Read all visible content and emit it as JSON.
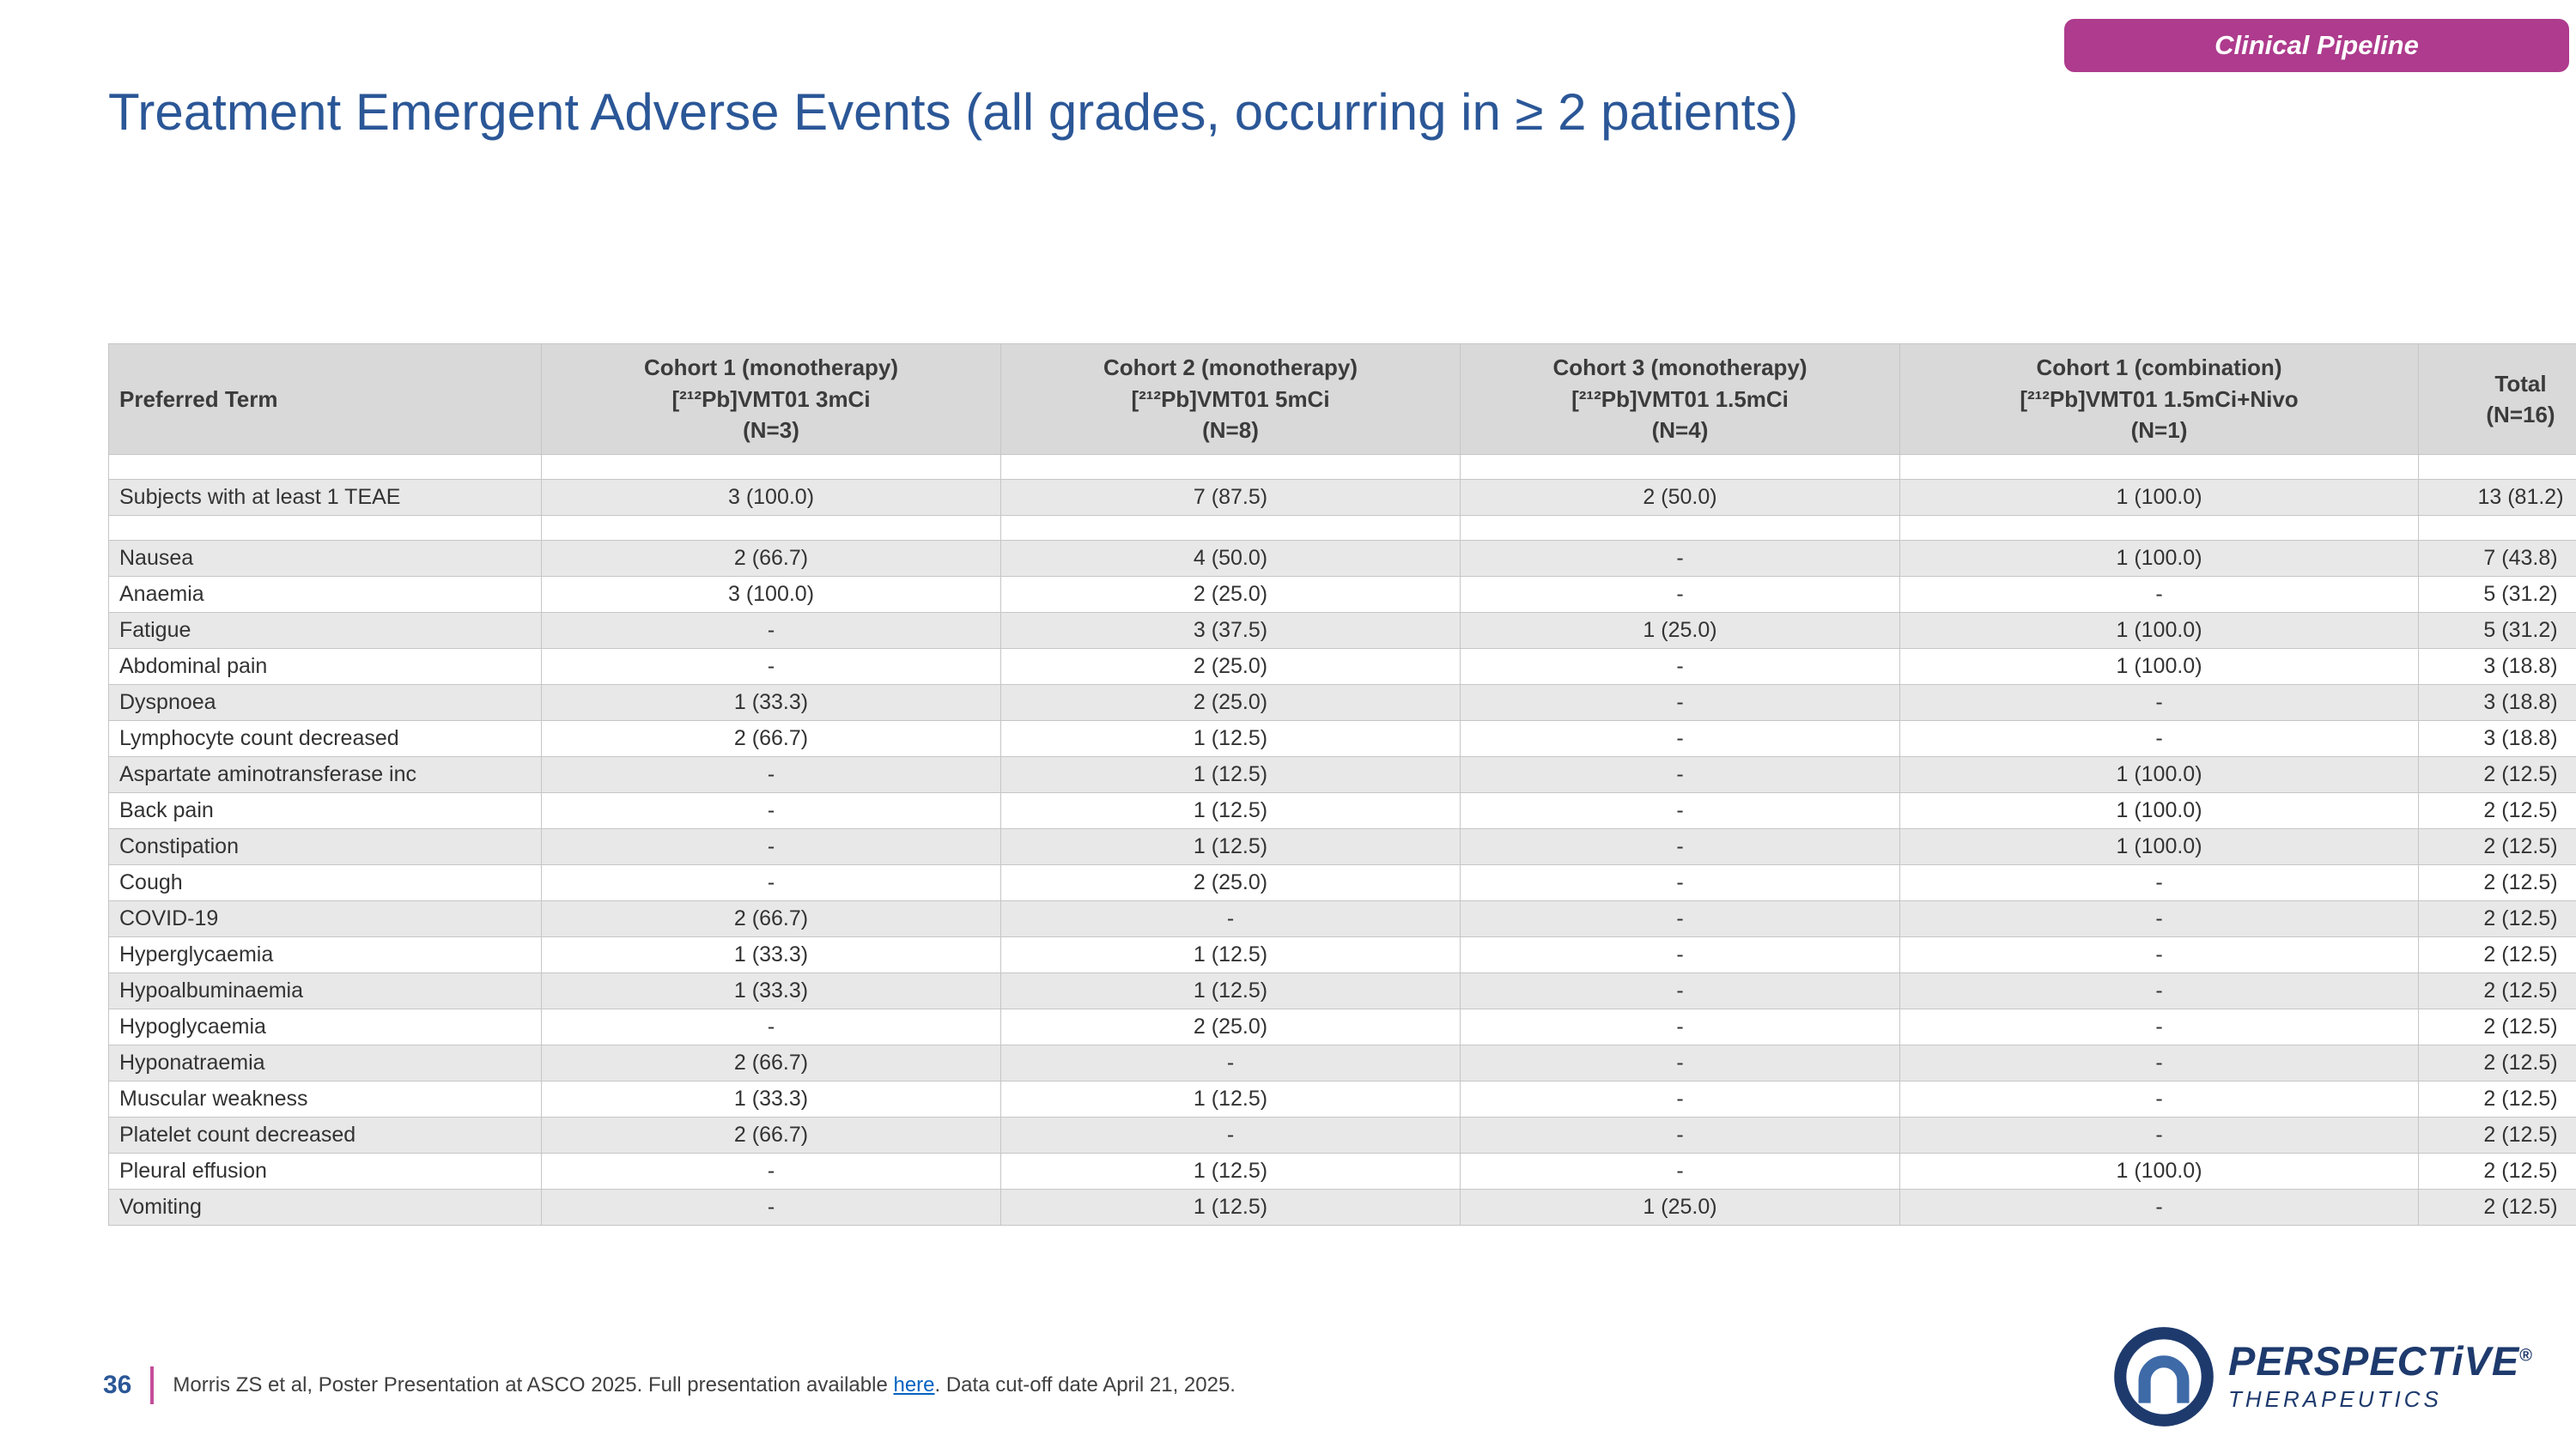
{
  "badge": {
    "label": "Clinical Pipeline"
  },
  "title": "Treatment Emergent Adverse Events (all grades, occurring in ≥ 2 patients)",
  "table": {
    "columns": [
      {
        "title": "Preferred Term",
        "sub": "",
        "n": ""
      },
      {
        "title": "Cohort 1 (monotherapy)",
        "sub": "[²¹²Pb]VMT01 3mCi",
        "n": "(N=3)"
      },
      {
        "title": "Cohort 2 (monotherapy)",
        "sub": "[²¹²Pb]VMT01 5mCi",
        "n": "(N=8)"
      },
      {
        "title": "Cohort 3 (monotherapy)",
        "sub": "[²¹²Pb]VMT01 1.5mCi",
        "n": "(N=4)"
      },
      {
        "title": "Cohort 1 (combination)",
        "sub": "[²¹²Pb]VMT01 1.5mCi+Nivo",
        "n": "(N=1)"
      },
      {
        "title": "Total",
        "sub": "(N=16)",
        "n": ""
      }
    ],
    "rows": [
      {
        "term": "",
        "values": [
          "",
          "",
          "",
          "",
          ""
        ]
      },
      {
        "term": "Subjects with at least 1 TEAE",
        "values": [
          "3 (100.0)",
          "7 (87.5)",
          "2 (50.0)",
          "1 (100.0)",
          "13 (81.2)"
        ]
      },
      {
        "term": "",
        "values": [
          "",
          "",
          "",
          "",
          ""
        ]
      },
      {
        "term": "Nausea",
        "values": [
          "2 (66.7)",
          "4 (50.0)",
          "-",
          "1 (100.0)",
          "7 (43.8)"
        ]
      },
      {
        "term": "Anaemia",
        "values": [
          "3 (100.0)",
          "2 (25.0)",
          "-",
          "-",
          "5 (31.2)"
        ]
      },
      {
        "term": "Fatigue",
        "values": [
          "-",
          "3 (37.5)",
          "1 (25.0)",
          "1 (100.0)",
          "5 (31.2)"
        ]
      },
      {
        "term": "Abdominal pain",
        "values": [
          "-",
          "2 (25.0)",
          "-",
          "1 (100.0)",
          "3 (18.8)"
        ]
      },
      {
        "term": "Dyspnoea",
        "values": [
          "1 (33.3)",
          "2 (25.0)",
          "-",
          "-",
          "3 (18.8)"
        ]
      },
      {
        "term": "Lymphocyte count decreased",
        "values": [
          "2 (66.7)",
          "1 (12.5)",
          "-",
          "-",
          "3 (18.8)"
        ]
      },
      {
        "term": "Aspartate aminotransferase inc",
        "values": [
          "-",
          "1 (12.5)",
          "-",
          "1 (100.0)",
          "2 (12.5)"
        ]
      },
      {
        "term": "Back pain",
        "values": [
          "-",
          "1 (12.5)",
          "-",
          "1 (100.0)",
          "2 (12.5)"
        ]
      },
      {
        "term": "Constipation",
        "values": [
          "-",
          "1 (12.5)",
          "-",
          "1 (100.0)",
          "2 (12.5)"
        ]
      },
      {
        "term": "Cough",
        "values": [
          "-",
          "2 (25.0)",
          "-",
          "-",
          "2 (12.5)"
        ]
      },
      {
        "term": "COVID-19",
        "values": [
          "2 (66.7)",
          "-",
          "-",
          "-",
          "2 (12.5)"
        ]
      },
      {
        "term": "Hyperglycaemia",
        "values": [
          "1 (33.3)",
          "1 (12.5)",
          "-",
          "-",
          "2 (12.5)"
        ]
      },
      {
        "term": "Hypoalbuminaemia",
        "values": [
          "1 (33.3)",
          "1 (12.5)",
          "-",
          "-",
          "2 (12.5)"
        ]
      },
      {
        "term": "Hypoglycaemia",
        "values": [
          "-",
          "2 (25.0)",
          "-",
          "-",
          "2 (12.5)"
        ]
      },
      {
        "term": "Hyponatraemia",
        "values": [
          "2 (66.7)",
          "-",
          "-",
          "-",
          "2 (12.5)"
        ]
      },
      {
        "term": "Muscular weakness",
        "values": [
          "1 (33.3)",
          "1 (12.5)",
          "-",
          "-",
          "2 (12.5)"
        ]
      },
      {
        "term": "Platelet count decreased",
        "values": [
          "2 (66.7)",
          "-",
          "-",
          "-",
          "2 (12.5)"
        ]
      },
      {
        "term": "Pleural effusion",
        "values": [
          "-",
          "1 (12.5)",
          "-",
          "1 (100.0)",
          "2 (12.5)"
        ]
      },
      {
        "term": "Vomiting",
        "values": [
          "-",
          "1 (12.5)",
          "1 (25.0)",
          "-",
          "2 (12.5)"
        ]
      }
    ]
  },
  "footer": {
    "page_number": "36",
    "citation_before": "Morris ZS et al, Poster Presentation at ASCO 2025. Full presentation available ",
    "link_text": "here",
    "citation_after": ". Data cut-off date April 21, 2025."
  },
  "logo": {
    "brand": "PERSPECTiVE",
    "registered": "®",
    "tagline": "THERAPEUTICS"
  },
  "colors": {
    "title_blue": "#2B5797",
    "badge_magenta": "#AE3B8D",
    "link_blue": "#0563C1",
    "logo_navy": "#1E3A6D",
    "header_gray": "#D9D9D9",
    "row_shade": "#E8E8E8",
    "divider_pink": "#C54E9B"
  }
}
